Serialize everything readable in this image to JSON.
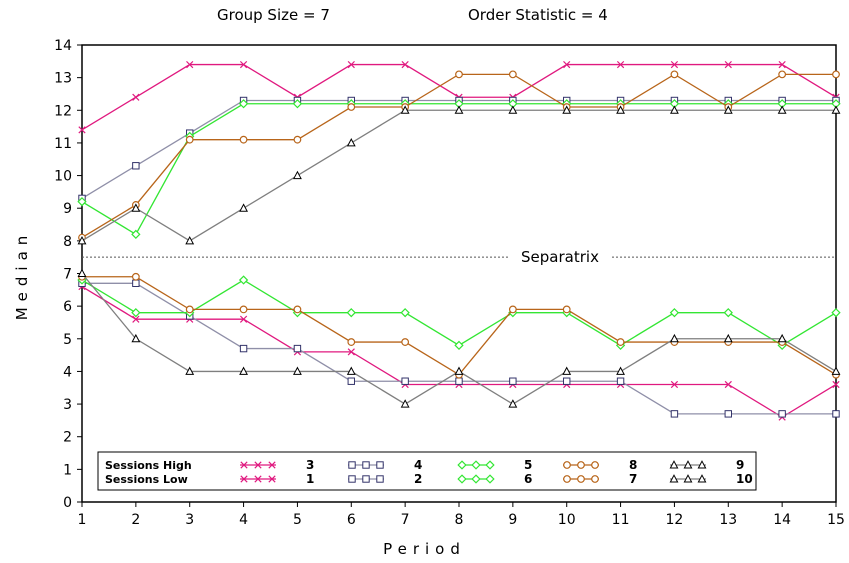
{
  "chart_data": {
    "type": "line",
    "title": "Group Size = 7",
    "subtitle": "Order Statistic = 4",
    "xlabel": "Period",
    "ylabel": "Median",
    "xlim": [
      1,
      15
    ],
    "ylim": [
      0,
      14
    ],
    "x": [
      1,
      2,
      3,
      4,
      5,
      6,
      7,
      8,
      9,
      10,
      11,
      12,
      13,
      14,
      15
    ],
    "y_ticks": [
      0,
      1,
      2,
      3,
      4,
      5,
      6,
      7,
      8,
      9,
      10,
      11,
      12,
      13,
      14
    ],
    "grid": false,
    "separatrix": {
      "label": "Separatrix",
      "y": 7.5
    },
    "legend": {
      "placement": "bottom-left",
      "row_labels": [
        "Sessions High",
        "Sessions Low"
      ]
    },
    "series": [
      {
        "name": "3",
        "group": "high",
        "color": "#e0197f",
        "marker": "x",
        "values": [
          11.4,
          12.4,
          13.4,
          13.4,
          12.4,
          13.4,
          13.4,
          12.4,
          12.4,
          13.4,
          13.4,
          13.4,
          13.4,
          13.4,
          12.4
        ]
      },
      {
        "name": "4",
        "group": "high",
        "color": "#8f8fa8",
        "marker": "square",
        "values": [
          9.3,
          10.3,
          11.3,
          12.3,
          12.3,
          12.3,
          12.3,
          12.3,
          12.3,
          12.3,
          12.3,
          12.3,
          12.3,
          12.3,
          12.3
        ]
      },
      {
        "name": "5",
        "group": "high",
        "color": "#33e633",
        "marker": "diamond",
        "values": [
          9.2,
          8.2,
          11.2,
          12.2,
          12.2,
          12.2,
          12.2,
          12.2,
          12.2,
          12.2,
          12.2,
          12.2,
          12.2,
          12.2,
          12.2
        ]
      },
      {
        "name": "8",
        "group": "high",
        "color": "#b8651a",
        "marker": "circle",
        "values": [
          8.1,
          9.1,
          11.1,
          11.1,
          11.1,
          12.1,
          12.1,
          13.1,
          13.1,
          12.1,
          12.1,
          13.1,
          12.1,
          13.1,
          13.1
        ]
      },
      {
        "name": "9",
        "group": "high",
        "color": "#7f7f7f",
        "marker": "triangle",
        "values": [
          8.0,
          9.0,
          8.0,
          9.0,
          10.0,
          11.0,
          12.0,
          12.0,
          12.0,
          12.0,
          12.0,
          12.0,
          12.0,
          12.0,
          12.0
        ]
      },
      {
        "name": "1",
        "group": "low",
        "color": "#e0197f",
        "marker": "x",
        "values": [
          6.6,
          5.6,
          5.6,
          5.6,
          4.6,
          4.6,
          3.6,
          3.6,
          3.6,
          3.6,
          3.6,
          3.6,
          3.6,
          2.6,
          3.6
        ]
      },
      {
        "name": "2",
        "group": "low",
        "color": "#8f8fa8",
        "marker": "square",
        "values": [
          6.7,
          6.7,
          5.7,
          4.7,
          4.7,
          3.7,
          3.7,
          3.7,
          3.7,
          3.7,
          3.7,
          2.7,
          2.7,
          2.7,
          2.7
        ]
      },
      {
        "name": "6",
        "group": "low",
        "color": "#33e633",
        "marker": "diamond",
        "values": [
          6.8,
          5.8,
          5.8,
          6.8,
          5.8,
          5.8,
          5.8,
          4.8,
          5.8,
          5.8,
          4.8,
          5.8,
          5.8,
          4.8,
          5.8
        ]
      },
      {
        "name": "7",
        "group": "low",
        "color": "#b8651a",
        "marker": "circle",
        "values": [
          6.9,
          6.9,
          5.9,
          5.9,
          5.9,
          4.9,
          4.9,
          3.9,
          5.9,
          5.9,
          4.9,
          4.9,
          4.9,
          4.9,
          3.9
        ]
      },
      {
        "name": "10",
        "group": "low",
        "color": "#7f7f7f",
        "marker": "triangle",
        "values": [
          7.0,
          5.0,
          4.0,
          4.0,
          4.0,
          4.0,
          3.0,
          4.0,
          3.0,
          4.0,
          4.0,
          5.0,
          5.0,
          5.0,
          4.0
        ]
      }
    ]
  }
}
